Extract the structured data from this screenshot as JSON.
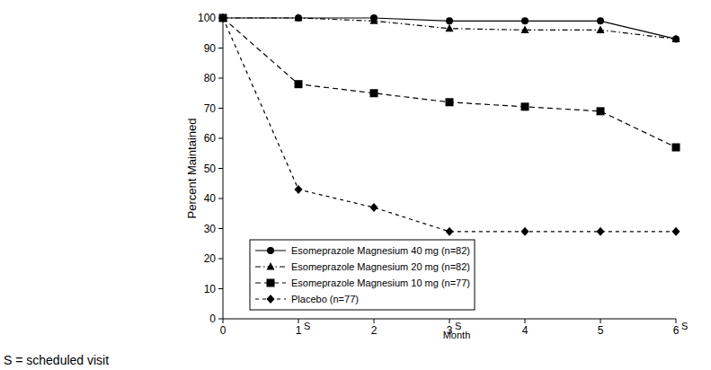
{
  "chart_data": {
    "type": "line",
    "x_label": "Month",
    "y_label": "Percent Maintained",
    "x": [
      0,
      1,
      2,
      3,
      4,
      5,
      6
    ],
    "xlim": [
      0,
      6
    ],
    "xticks": [
      0,
      1,
      2,
      3,
      4,
      5,
      6
    ],
    "ylim": [
      0,
      100
    ],
    "yticks": [
      0,
      10,
      20,
      30,
      40,
      50,
      60,
      70,
      80,
      90,
      100
    ],
    "grid": false,
    "legend": "lower left",
    "scheduled_visits": {
      "x": [
        1,
        3,
        6
      ],
      "label": "S"
    },
    "note": "S = scheduled visit",
    "series": [
      {
        "name": "Esomeprazole Magnesium 40 mg (n=82)",
        "color": "#000000",
        "marker": "circle",
        "line_style": "solid",
        "values": [
          100,
          100,
          100,
          99,
          99,
          99,
          93
        ]
      },
      {
        "name": "Esomeprazole Magnesium 20 mg (n=82)",
        "color": "#000000",
        "marker": "triangle",
        "line_style": "dashdot",
        "values": [
          100,
          100,
          99,
          96.5,
          96,
          96,
          93
        ]
      },
      {
        "name": "Esomeprazole Magnesium 10 mg (n=77)",
        "color": "#000000",
        "marker": "square",
        "line_style": "dashed",
        "values": [
          100,
          78,
          75,
          72,
          70.5,
          69,
          57
        ]
      },
      {
        "name": "Placebo (n=77)",
        "color": "#000000",
        "marker": "diamond",
        "line_style": "longdash",
        "values": [
          100,
          43,
          37,
          29,
          29,
          29,
          29
        ]
      }
    ]
  }
}
